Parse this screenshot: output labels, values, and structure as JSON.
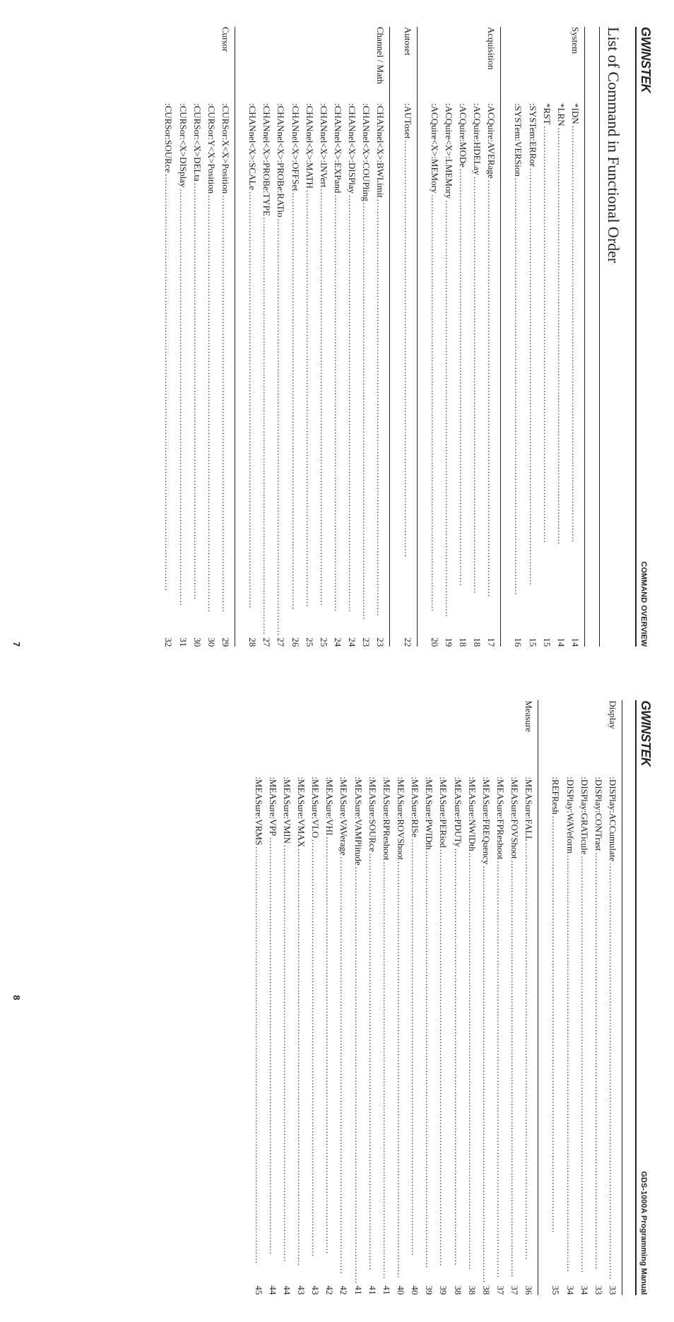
{
  "brand": "GWINSTEK",
  "left": {
    "headerRight": "COMMAND OVERVIEW",
    "title": "List of Command in Functional Order",
    "pageNumber": "7",
    "groups": [
      {
        "label": "System",
        "entries": [
          {
            "name": "*IDN",
            "page": "14"
          },
          {
            "name": "*LRN",
            "page": "14"
          },
          {
            "name": "*RST",
            "page": "15"
          },
          {
            "name": ":SYSTem:ERRor",
            "page": "15"
          },
          {
            "name": ":SYSTem:VERSion",
            "page": "16"
          }
        ]
      },
      {
        "label": "Acquisition",
        "entries": [
          {
            "name": ":ACQuire:AVERage",
            "page": "17"
          },
          {
            "name": ":ACQuire:HDELay",
            "page": "18"
          },
          {
            "name": ":ACQuire:MODe",
            "page": "18"
          },
          {
            "name": ":ACQuire<X>:LMEMory",
            "page": "19"
          },
          {
            "name": ":ACQuire<X>:MEMory",
            "page": "20"
          }
        ]
      },
      {
        "label": "Autoset",
        "entries": [
          {
            "name": ":AUToset",
            "page": "22"
          }
        ]
      },
      {
        "label": "Channel / Math",
        "entries": [
          {
            "name": ":CHANnel<X>:BWLimit",
            "page": "23"
          },
          {
            "name": ":CHANnel<X>:COUPling",
            "page": "23"
          },
          {
            "name": ":CHANnel<X>:DISPlay",
            "page": "24"
          },
          {
            "name": ":CHANnel<X>:EXPand",
            "page": "24"
          },
          {
            "name": ":CHANnel<X>:INVert",
            "page": "25"
          },
          {
            "name": ":CHANnel<X>:MATH",
            "page": "25"
          },
          {
            "name": ":CHANnel<X>:OFFSet",
            "page": "26"
          },
          {
            "name": ":CHANnel<X>:PROBe:RATio",
            "page": "27"
          },
          {
            "name": ":CHANnel<X>:PROBe:TYPE",
            "page": "27"
          },
          {
            "name": ":CHANnel<X>:SCALe",
            "page": "28"
          }
        ]
      },
      {
        "label": "Cursor",
        "entries": [
          {
            "name": ":CURSor:X<X>Position",
            "page": "29"
          },
          {
            "name": ":CURSor:Y<X>Position",
            "page": "30"
          },
          {
            "name": ":CURSor:<X>DELta",
            "page": "30"
          },
          {
            "name": ":CURSor:<X>DISplay",
            "page": "31"
          },
          {
            "name": ":CURSor:SOURce",
            "page": "32"
          }
        ]
      }
    ]
  },
  "right": {
    "headerRight": "GDS-1000A Programming Manual",
    "pageNumber": "8",
    "groups": [
      {
        "label": "Display",
        "entries": [
          {
            "name": ":DISPlay:ACCumulate",
            "page": "33"
          },
          {
            "name": ":DISPlay:CONTrast",
            "page": "33"
          },
          {
            "name": ":DISPlay:GRATicule",
            "page": "34"
          },
          {
            "name": ":DISPlay:WAVeform",
            "page": "34"
          },
          {
            "name": ":REFResh",
            "page": "35"
          }
        ]
      },
      {
        "label": "Measure",
        "entries": [
          {
            "name": ":MEASure:FALL",
            "page": "36"
          },
          {
            "name": ":MEASure:FOVShoot",
            "page": "37"
          },
          {
            "name": ":MEASure:FPReshoot",
            "page": "37"
          },
          {
            "name": ":MEASure:FREQuency",
            "page": "38"
          },
          {
            "name": ":MEASure:NWIDth",
            "page": "38"
          },
          {
            "name": ":MEASure:PDUTy",
            "page": "38"
          },
          {
            "name": ":MEASure:PERiod",
            "page": "39"
          },
          {
            "name": ":MEASure:PWIDth",
            "page": "39"
          },
          {
            "name": ":MEASure:RISe",
            "page": "40"
          },
          {
            "name": ":MEASure:ROVShoot",
            "page": "40"
          },
          {
            "name": ":MEASure:RPReshoot",
            "page": "41"
          },
          {
            "name": ":MEASure:SOURce",
            "page": "41"
          },
          {
            "name": ":MEASure:VAMPlitude",
            "page": "41"
          },
          {
            "name": ":MEASure:VAVerage",
            "page": "42"
          },
          {
            "name": ":MEASure:VHI",
            "page": "42"
          },
          {
            "name": ":MEASure:VLO",
            "page": "43"
          },
          {
            "name": ":MEASure:VMAX",
            "page": "43"
          },
          {
            "name": ":MEASure:VMIN",
            "page": "44"
          },
          {
            "name": ":MEASure:VPP",
            "page": "44"
          },
          {
            "name": ":MEASure:VRMS",
            "page": "45"
          }
        ]
      }
    ]
  }
}
